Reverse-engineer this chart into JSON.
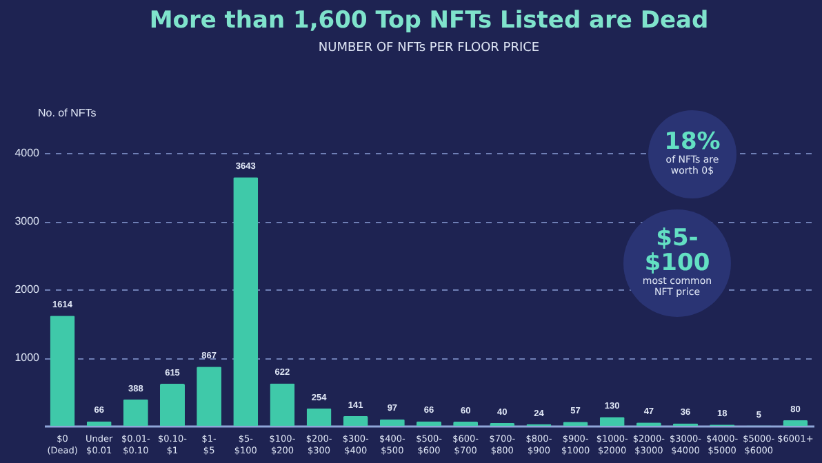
{
  "chart_data": {
    "type": "bar",
    "title": "More than 1,600 Top NFTs Listed are Dead",
    "subtitle": "NUMBER OF NFTs PER FLOOR PRICE",
    "ylabel": "No. of NFTs",
    "categories": [
      "$0\n(Dead)",
      "Under\n$0.01",
      "$0.01-\n$0.10",
      "$0.10-\n$1",
      "$1-\n$5",
      "$5-\n$100",
      "$100-\n$200",
      "$200-\n$300",
      "$300-\n$400",
      "$400-\n$500",
      "$500-\n$600",
      "$600-\n$700",
      "$700-\n$800",
      "$800-\n$900",
      "$900-\n$1000",
      "$1000-\n$2000",
      "$2000-\n$3000",
      "$3000-\n$4000",
      "$4000-\n$5000",
      "$5000-\n$6000",
      "$6001+"
    ],
    "values": [
      1614,
      66,
      388,
      615,
      867,
      3643,
      622,
      254,
      141,
      97,
      66,
      60,
      40,
      24,
      57,
      130,
      47,
      36,
      18,
      5,
      80
    ],
    "color": "#3fc9a9",
    "ylim": [
      0,
      4000
    ],
    "yticks": [
      1000,
      2000,
      3000,
      4000
    ],
    "grid": "y",
    "data_labels": true,
    "annotations": [
      "18%\nof NFTs are\nworth 0$",
      "$5-\n$100\nmost common\nNFT price"
    ]
  }
}
